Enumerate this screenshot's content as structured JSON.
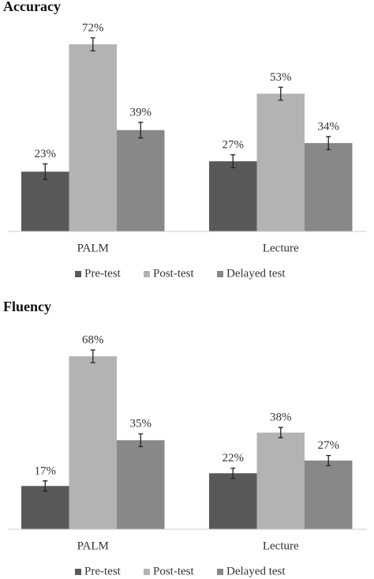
{
  "chart_data": [
    {
      "type": "bar",
      "title": "Accuracy",
      "categories": [
        "PALM",
        "Lecture"
      ],
      "series": [
        {
          "name": "Pre-test",
          "color": "#595959",
          "values": [
            23,
            27
          ],
          "value_labels": [
            "23%",
            "27%"
          ],
          "errors": [
            3,
            2.5
          ]
        },
        {
          "name": "Post-test",
          "color": "#b3b3b3",
          "values": [
            72,
            53
          ],
          "value_labels": [
            "72%",
            "53%"
          ],
          "errors": [
            2.5,
            2.5
          ]
        },
        {
          "name": "Delayed test",
          "color": "#888888",
          "values": [
            39,
            34
          ],
          "value_labels": [
            "39%",
            "34%"
          ],
          "errors": [
            3,
            2.5
          ]
        }
      ],
      "legend": "bottom"
    },
    {
      "type": "bar",
      "title": "Fluency",
      "categories": [
        "PALM",
        "Lecture"
      ],
      "series": [
        {
          "name": "Pre-test",
          "color": "#595959",
          "values": [
            17,
            22
          ],
          "value_labels": [
            "17%",
            "22%"
          ],
          "errors": [
            2,
            2
          ]
        },
        {
          "name": "Post-test",
          "color": "#b3b3b3",
          "values": [
            68,
            38
          ],
          "value_labels": [
            "68%",
            "38%"
          ],
          "errors": [
            2.5,
            2
          ]
        },
        {
          "name": "Delayed test",
          "color": "#888888",
          "values": [
            35,
            27
          ],
          "value_labels": [
            "35%",
            "27%"
          ],
          "errors": [
            2.5,
            2
          ]
        }
      ],
      "legend": "bottom"
    }
  ]
}
